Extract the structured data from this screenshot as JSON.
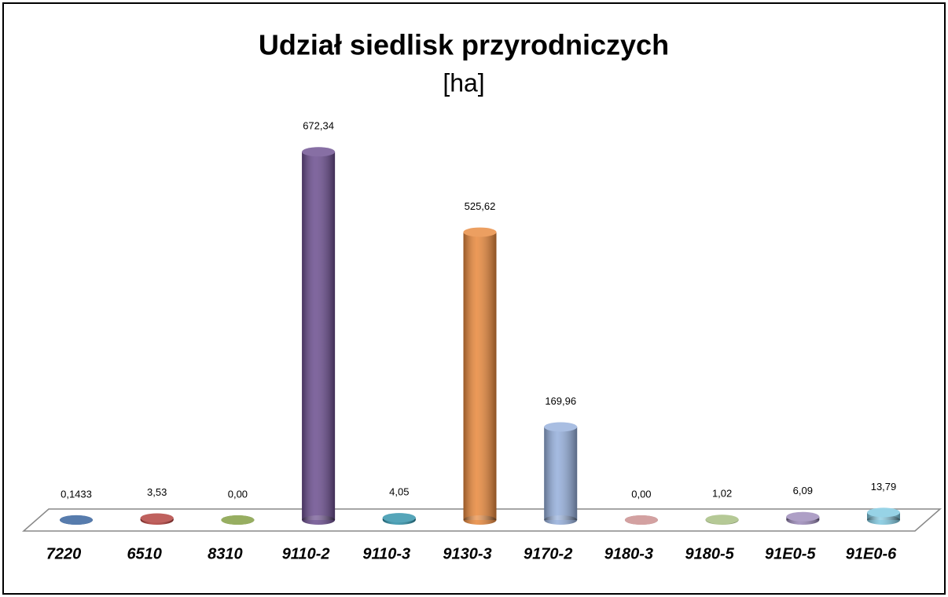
{
  "chart_data": {
    "type": "bar",
    "title": "Udział siedlisk przyrodniczych",
    "subtitle": "[ha]",
    "categories": [
      "7220",
      "6510",
      "8310",
      "9110-2",
      "9110-3",
      "9130-3",
      "9170-2",
      "9180-3",
      "9180-5",
      "91E0-5",
      "91E0-6"
    ],
    "values": [
      0.1433,
      3.53,
      0,
      672.34,
      4.05,
      525.62,
      169.96,
      0,
      1.02,
      6.09,
      13.79
    ],
    "value_labels": [
      "0,1433",
      "3,53",
      "0,00",
      "672,34",
      "4,05",
      "525,62",
      "169,96",
      "0,00",
      "1,02",
      "6,09",
      "13,79"
    ],
    "colors": [
      "#2e5c99",
      "#b03a36",
      "#7d9a3a",
      "#6a4c8e",
      "#2b8fa8",
      "#e8873a",
      "#94aedb",
      "#c98a8a",
      "#a3bc7c",
      "#9a88b8",
      "#7ec8e0"
    ],
    "ylim": [
      0,
      700
    ]
  }
}
